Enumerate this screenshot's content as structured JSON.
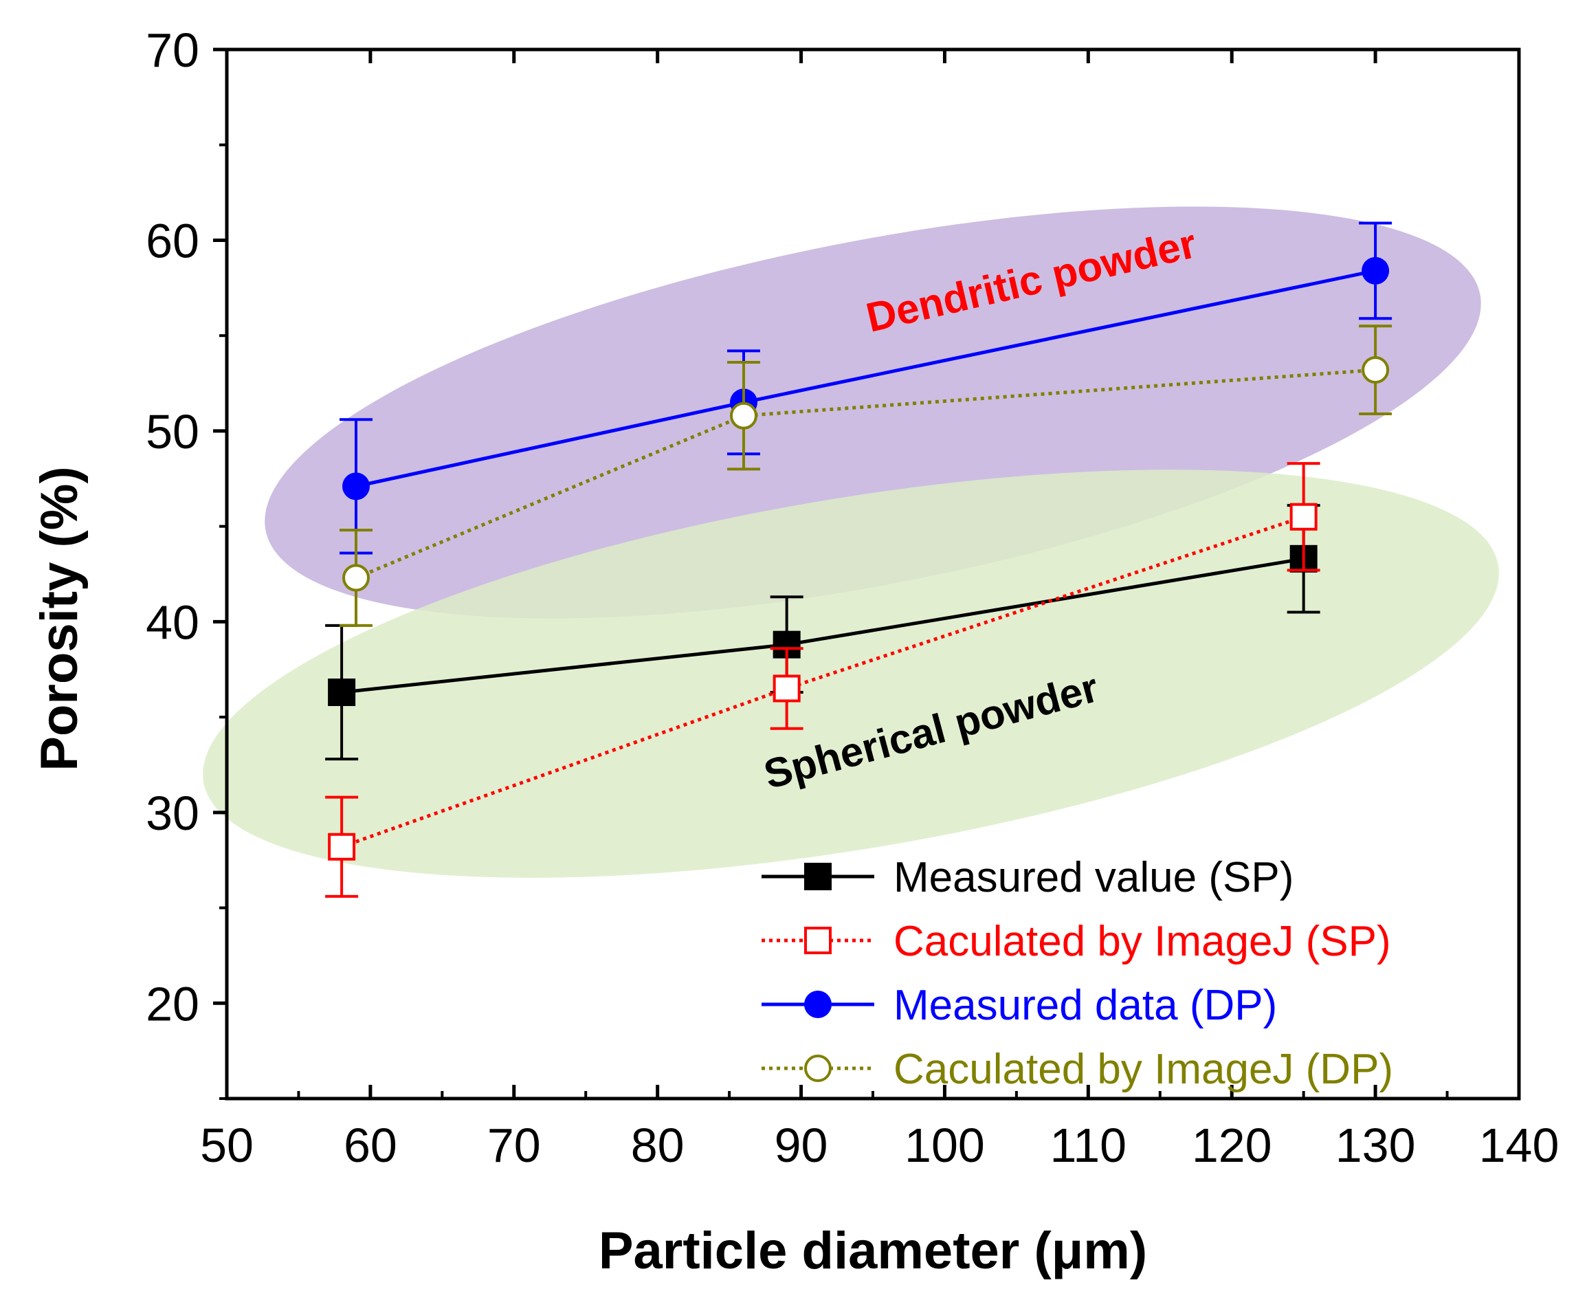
{
  "chart_data": {
    "type": "scatter",
    "xlabel": "Particle diameter (μm)",
    "ylabel": "Porosity (%)",
    "xlim": [
      50,
      140
    ],
    "ylim": [
      15,
      70
    ],
    "xticks": [
      50,
      60,
      70,
      80,
      90,
      100,
      110,
      120,
      130,
      140
    ],
    "yticks": [
      20,
      30,
      40,
      50,
      60,
      70
    ],
    "regions": [
      {
        "label": "Dendritic powder",
        "color": "#c8b6df",
        "text_color": "#ff0000"
      },
      {
        "label": "Spherical powder",
        "color": "#dcecc8",
        "text_color": "#000000"
      }
    ],
    "series": [
      {
        "name": "Measured value (SP)",
        "color": "#000000",
        "marker": "square-filled",
        "line": "solid",
        "x": [
          58,
          89,
          125
        ],
        "y": [
          36.3,
          38.8,
          43.3
        ],
        "err": [
          3.5,
          2.5,
          2.8
        ]
      },
      {
        "name": "Caculated by ImageJ (SP)",
        "color": "#ff0000",
        "marker": "square-open",
        "line": "dotted",
        "x": [
          58,
          89,
          125
        ],
        "y": [
          28.2,
          36.5,
          45.5
        ],
        "err": [
          2.6,
          2.1,
          2.8
        ]
      },
      {
        "name": "Measured data (DP)",
        "color": "#0000ff",
        "marker": "circle-filled",
        "line": "solid",
        "x": [
          59,
          86,
          130
        ],
        "y": [
          47.1,
          51.5,
          58.4
        ],
        "err": [
          3.5,
          2.7,
          2.5
        ]
      },
      {
        "name": "Caculated by ImageJ (DP)",
        "color": "#808000",
        "marker": "circle-open",
        "line": "dotted",
        "x": [
          59,
          86,
          130
        ],
        "y": [
          42.3,
          50.8,
          53.2
        ],
        "err": [
          2.5,
          2.8,
          2.3
        ]
      }
    ]
  }
}
